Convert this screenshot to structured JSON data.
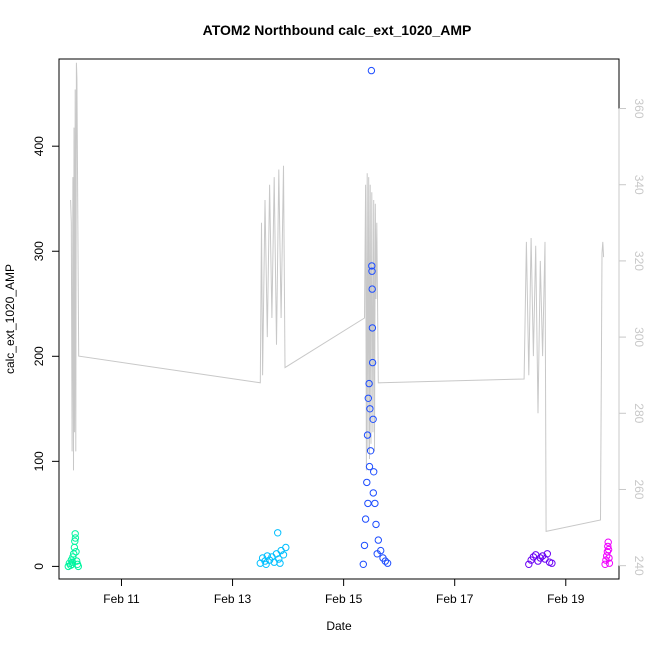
{
  "chart_data": {
    "type": "scatter",
    "title": "ATOM2 Northbound calc_ext_1020_AMP",
    "xlabel": "Date",
    "ylabel": "calc_ext_1020_AMP",
    "xlim": [
      "2023-02-09T21:00",
      "2023-02-19T23:00"
    ],
    "ylim": [
      -12,
      483
    ],
    "x_ticks": [
      {
        "label": "Feb 11",
        "x": "2023-02-11T00:00"
      },
      {
        "label": "Feb 13",
        "x": "2023-02-13T00:00"
      },
      {
        "label": "Feb 15",
        "x": "2023-02-15T00:00"
      },
      {
        "label": "Feb 17",
        "x": "2023-02-17T00:00"
      },
      {
        "label": "Feb 19",
        "x": "2023-02-19T00:00"
      }
    ],
    "y_ticks": [
      0,
      100,
      200,
      300,
      400
    ],
    "y2lim": [
      236.5,
      373
    ],
    "y2_ticks": [
      240,
      260,
      280,
      300,
      320,
      340,
      360
    ],
    "grid": false,
    "legend": "none",
    "series": [
      {
        "kind": "points",
        "color": "#00f5a0",
        "points": [
          [
            "2023-02-10T01:00",
            0
          ],
          [
            "2023-02-10T01:30",
            3
          ],
          [
            "2023-02-10T02:00",
            1
          ],
          [
            "2023-02-10T02:20",
            6
          ],
          [
            "2023-02-10T02:40",
            2
          ],
          [
            "2023-02-10T03:00",
            9
          ],
          [
            "2023-02-10T03:20",
            12
          ],
          [
            "2023-02-10T03:40",
            18
          ],
          [
            "2023-02-10T03:50",
            24
          ],
          [
            "2023-02-10T04:00",
            31
          ],
          [
            "2023-02-10T04:05",
            27
          ],
          [
            "2023-02-10T04:20",
            14
          ],
          [
            "2023-02-10T04:40",
            5
          ],
          [
            "2023-02-10T05:00",
            2
          ],
          [
            "2023-02-10T05:20",
            0
          ],
          [
            "2023-02-10T02:50",
            4
          ]
        ]
      },
      {
        "kind": "points",
        "color": "#00bfff",
        "points": [
          [
            "2023-02-13T12:00",
            3
          ],
          [
            "2023-02-13T13:00",
            8
          ],
          [
            "2023-02-13T14:00",
            5
          ],
          [
            "2023-02-13T15:00",
            10
          ],
          [
            "2023-02-13T16:00",
            6
          ],
          [
            "2023-02-13T17:00",
            9
          ],
          [
            "2023-02-13T18:00",
            4
          ],
          [
            "2023-02-13T19:00",
            12
          ],
          [
            "2023-02-13T20:00",
            7
          ],
          [
            "2023-02-13T21:00",
            15
          ],
          [
            "2023-02-13T22:00",
            11
          ],
          [
            "2023-02-13T23:00",
            18
          ],
          [
            "2023-02-13T19:30",
            32
          ],
          [
            "2023-02-13T14:30",
            2
          ],
          [
            "2023-02-13T20:30",
            3
          ]
        ]
      },
      {
        "kind": "points",
        "color": "#1d4dff",
        "points": [
          [
            "2023-02-15T09:00",
            20
          ],
          [
            "2023-02-15T09:30",
            45
          ],
          [
            "2023-02-15T10:00",
            80
          ],
          [
            "2023-02-15T10:20",
            125
          ],
          [
            "2023-02-15T10:40",
            160
          ],
          [
            "2023-02-15T11:00",
            174
          ],
          [
            "2023-02-15T11:20",
            150
          ],
          [
            "2023-02-15T11:40",
            110
          ],
          [
            "2023-02-15T12:00",
            472
          ],
          [
            "2023-02-15T12:10",
            286
          ],
          [
            "2023-02-15T12:15",
            281
          ],
          [
            "2023-02-15T12:20",
            264
          ],
          [
            "2023-02-15T12:25",
            227
          ],
          [
            "2023-02-15T12:30",
            194
          ],
          [
            "2023-02-15T12:45",
            140
          ],
          [
            "2023-02-15T13:00",
            90
          ],
          [
            "2023-02-15T13:30",
            60
          ],
          [
            "2023-02-15T14:00",
            40
          ],
          [
            "2023-02-15T15:00",
            25
          ],
          [
            "2023-02-15T16:00",
            15
          ],
          [
            "2023-02-15T17:00",
            8
          ],
          [
            "2023-02-15T18:00",
            5
          ],
          [
            "2023-02-15T19:00",
            3
          ],
          [
            "2023-02-15T08:30",
            2
          ],
          [
            "2023-02-15T10:30",
            60
          ],
          [
            "2023-02-15T11:10",
            95
          ],
          [
            "2023-02-15T12:50",
            70
          ],
          [
            "2023-02-15T14:30",
            12
          ]
        ]
      },
      {
        "kind": "points",
        "color": "#6a00f4",
        "points": [
          [
            "2023-02-18T08:00",
            2
          ],
          [
            "2023-02-18T09:00",
            6
          ],
          [
            "2023-02-18T10:00",
            9
          ],
          [
            "2023-02-18T11:00",
            11
          ],
          [
            "2023-02-18T12:00",
            5
          ],
          [
            "2023-02-18T13:00",
            8
          ],
          [
            "2023-02-18T14:00",
            10
          ],
          [
            "2023-02-18T15:00",
            7
          ],
          [
            "2023-02-18T16:00",
            12
          ],
          [
            "2023-02-18T17:00",
            4
          ],
          [
            "2023-02-18T18:00",
            3
          ]
        ]
      },
      {
        "kind": "points",
        "color": "#f000ff",
        "points": [
          [
            "2023-02-19T17:00",
            2
          ],
          [
            "2023-02-19T17:20",
            6
          ],
          [
            "2023-02-19T17:40",
            10
          ],
          [
            "2023-02-19T18:00",
            14
          ],
          [
            "2023-02-19T18:10",
            19
          ],
          [
            "2023-02-19T18:20",
            23
          ],
          [
            "2023-02-19T18:30",
            16
          ],
          [
            "2023-02-19T18:40",
            8
          ],
          [
            "2023-02-19T18:50",
            3
          ]
        ]
      },
      {
        "kind": "line",
        "axis": "right",
        "color": "#c8c8c8",
        "points": [
          [
            "2023-02-10T02:00",
            336
          ],
          [
            "2023-02-10T02:20",
            330
          ],
          [
            "2023-02-10T02:40",
            270
          ],
          [
            "2023-02-10T03:00",
            342
          ],
          [
            "2023-02-10T03:15",
            265
          ],
          [
            "2023-02-10T03:30",
            355
          ],
          [
            "2023-02-10T03:45",
            275
          ],
          [
            "2023-02-10T04:00",
            365
          ],
          [
            "2023-02-10T04:15",
            270
          ],
          [
            "2023-02-10T04:30",
            372
          ],
          [
            "2023-02-10T04:45",
            368
          ],
          [
            "2023-02-10T05:30",
            295
          ],
          [
            "2023-02-13T12:00",
            288
          ],
          [
            "2023-02-13T12:30",
            330
          ],
          [
            "2023-02-13T13:00",
            290
          ],
          [
            "2023-02-13T14:00",
            336
          ],
          [
            "2023-02-13T15:00",
            300
          ],
          [
            "2023-02-13T16:00",
            340
          ],
          [
            "2023-02-13T17:00",
            305
          ],
          [
            "2023-02-13T18:00",
            342
          ],
          [
            "2023-02-13T19:00",
            298
          ],
          [
            "2023-02-13T20:00",
            344
          ],
          [
            "2023-02-13T21:00",
            305
          ],
          [
            "2023-02-13T22:00",
            345
          ],
          [
            "2023-02-13T22:40",
            292
          ],
          [
            "2023-02-15T09:00",
            305
          ],
          [
            "2023-02-15T09:30",
            340
          ],
          [
            "2023-02-15T09:50",
            265
          ],
          [
            "2023-02-15T10:10",
            343
          ],
          [
            "2023-02-15T10:30",
            270
          ],
          [
            "2023-02-15T10:50",
            342
          ],
          [
            "2023-02-15T11:10",
            268
          ],
          [
            "2023-02-15T11:30",
            340
          ],
          [
            "2023-02-15T11:50",
            272
          ],
          [
            "2023-02-15T12:10",
            338
          ],
          [
            "2023-02-15T12:40",
            275
          ],
          [
            "2023-02-15T13:00",
            336
          ],
          [
            "2023-02-15T13:20",
            270
          ],
          [
            "2023-02-15T13:40",
            335
          ],
          [
            "2023-02-15T14:00",
            310
          ],
          [
            "2023-02-15T14:20",
            330
          ],
          [
            "2023-02-15T15:00",
            288
          ],
          [
            "2023-02-18T06:00",
            289
          ],
          [
            "2023-02-18T07:00",
            325
          ],
          [
            "2023-02-18T08:00",
            290
          ],
          [
            "2023-02-18T09:00",
            326
          ],
          [
            "2023-02-18T10:00",
            295
          ],
          [
            "2023-02-18T11:00",
            324
          ],
          [
            "2023-02-18T12:00",
            280
          ],
          [
            "2023-02-18T13:00",
            320
          ],
          [
            "2023-02-18T14:00",
            295
          ],
          [
            "2023-02-18T15:00",
            325
          ],
          [
            "2023-02-18T15:30",
            249
          ],
          [
            "2023-02-19T15:00",
            252
          ],
          [
            "2023-02-19T15:40",
            322
          ],
          [
            "2023-02-19T16:00",
            325
          ],
          [
            "2023-02-19T16:20",
            321
          ]
        ]
      }
    ]
  }
}
